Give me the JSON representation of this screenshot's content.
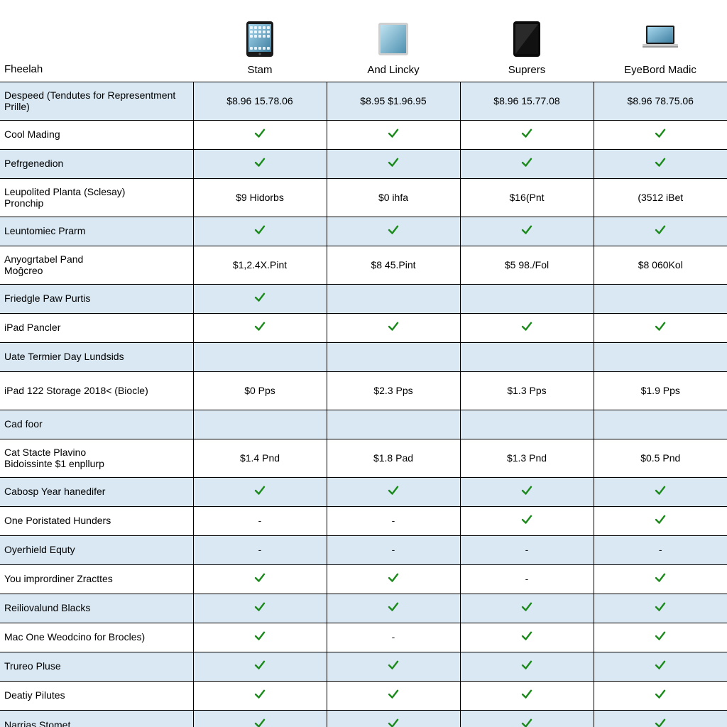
{
  "colors": {
    "alt_row_bg": "#d9e8f2",
    "border": "#000000",
    "check": "#1a8a1a",
    "dash": "#1a1a1a",
    "device_body_dark": "#1a1a1a",
    "device_body_light": "#d9d9d9",
    "device_screen_sky1": "#9fd4ea",
    "device_screen_sky2": "#5aa7c7"
  },
  "header": {
    "feature_label": "Fheelah",
    "products": [
      {
        "label": "Stam",
        "icon": "ipad-home-dark"
      },
      {
        "label": "And Lincky",
        "icon": "ipad-plain"
      },
      {
        "label": "Suprers",
        "icon": "ipad-glossy-dark"
      },
      {
        "label": "EyeBord Madic",
        "icon": "macbook"
      }
    ]
  },
  "rows": [
    {
      "alt": true,
      "tall": true,
      "label": "Despeed (Tendutes for Representment Prille)",
      "cells": [
        "$8.96  15.78.06",
        "$8.95  $1.96.95",
        "$8.96  15.77.08",
        "$8.96  78.75.06"
      ]
    },
    {
      "alt": false,
      "label": "Cool Mading",
      "cells": [
        "check",
        "check",
        "check",
        "check"
      ]
    },
    {
      "alt": true,
      "label": "Pefrgenedion",
      "cells": [
        "check",
        "check",
        "check",
        "check"
      ]
    },
    {
      "alt": false,
      "tall": true,
      "label": "Leupolited Planta (Sclesay)\nPronchip",
      "cells": [
        "$9 Hidorbs",
        "$0 ihfa",
        "$16(Pnt",
        "(3512 iBet"
      ]
    },
    {
      "alt": true,
      "label": "Leuntomiec Prarm",
      "cells": [
        "check",
        "check",
        "check",
        "check"
      ]
    },
    {
      "alt": false,
      "tall": true,
      "label": "Anyogrtabel Pand\nMoĝcreo",
      "cells": [
        "$1,2.4X.Pint",
        "$8 45.Pint",
        "$5 98./Fol",
        "$8 060Kol"
      ]
    },
    {
      "alt": true,
      "label": "Friedgle Paw Purtis",
      "cells": [
        "check",
        "",
        "",
        ""
      ]
    },
    {
      "alt": false,
      "label": "iPad Pancler",
      "cells": [
        "check",
        "check",
        "check",
        "check"
      ]
    },
    {
      "alt": true,
      "label": "Uate Termier Day Lundsids",
      "cells": [
        "",
        "",
        "",
        ""
      ]
    },
    {
      "alt": false,
      "tall": true,
      "label": "iPad 122 Storage 2018< (Biocle)",
      "cells": [
        "$0 Pps",
        "$2.3 Pps",
        "$1.3 Pps",
        "$1.9 Pps"
      ]
    },
    {
      "alt": true,
      "label": "Cad foor",
      "cells": [
        "",
        "",
        "",
        ""
      ]
    },
    {
      "alt": false,
      "tall": true,
      "label": "Cat Stacte Plavino\nBidoissinte $1 enpllurp",
      "cells": [
        "$1.4 Pnd",
        "$1.8 Pad",
        "$1.3 Pnd",
        "$0.5 Pnd"
      ]
    },
    {
      "alt": true,
      "label": "Cabosp Year hanedifer",
      "cells": [
        "check",
        "check",
        "check",
        "check"
      ]
    },
    {
      "alt": false,
      "label": "One Poristated Hunders",
      "cells": [
        "dash",
        "dash",
        "check",
        "check"
      ]
    },
    {
      "alt": true,
      "label": "Oyerhield Equty",
      "cells": [
        "dash",
        "dash",
        "dash",
        "dash"
      ]
    },
    {
      "alt": false,
      "label": "You imprordiner Zracttes",
      "cells": [
        "check",
        "check",
        "dash",
        "check"
      ]
    },
    {
      "alt": true,
      "label": "Reiliovalund Blacks",
      "cells": [
        "check",
        "check",
        "check",
        "check"
      ]
    },
    {
      "alt": false,
      "label": "Mac One Weodcino for Brocles)",
      "cells": [
        "check",
        "dash",
        "check",
        "check"
      ]
    },
    {
      "alt": true,
      "label": "Trureo Pluse",
      "cells": [
        "check",
        "check",
        "check",
        "check"
      ]
    },
    {
      "alt": false,
      "label": "Deatiy Pilutes",
      "cells": [
        "check",
        "check",
        "check",
        "check"
      ]
    },
    {
      "alt": true,
      "label": "Narrias Stomet",
      "cells": [
        "check",
        "check",
        "check",
        "check"
      ]
    }
  ]
}
